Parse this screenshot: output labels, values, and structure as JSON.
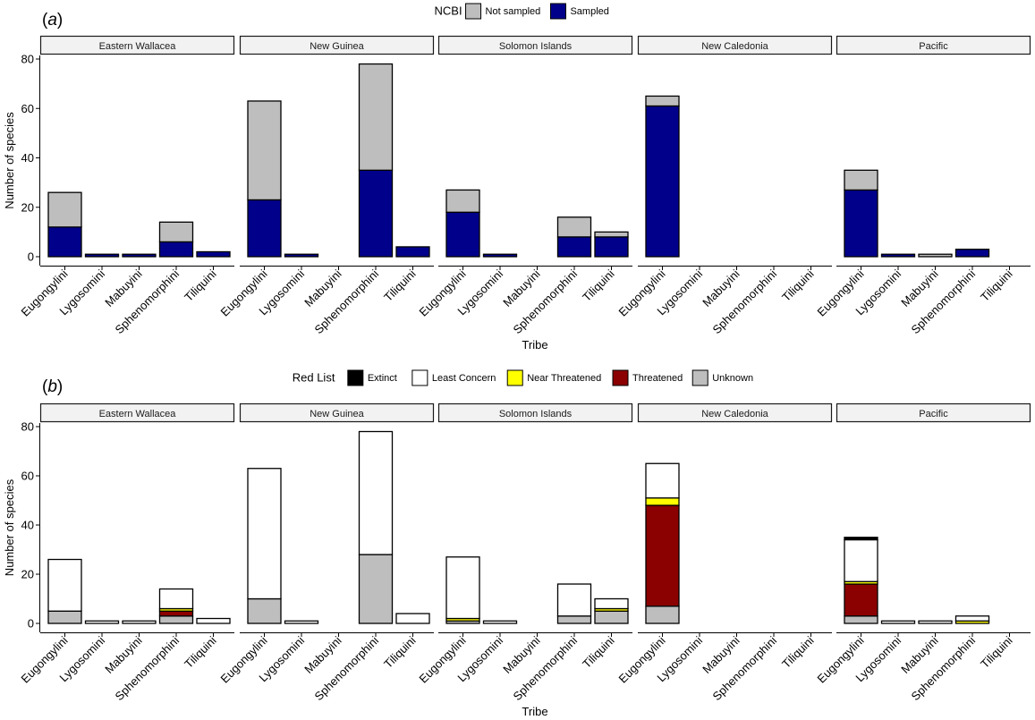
{
  "chart_data": [
    {
      "type": "bar",
      "panel_label": "a",
      "legend": {
        "title": "NCBI",
        "position": "top",
        "entries": [
          {
            "name": "Not sampled",
            "color": "#bebebe"
          },
          {
            "name": "Sampled",
            "color": "#00008b"
          }
        ]
      },
      "facets": [
        "Eastern Wallacea",
        "New Guinea",
        "Solomon Islands",
        "New Caledonia",
        "Pacific"
      ],
      "categories": [
        "Eugongylini",
        "Lygosomini",
        "Mabuyini",
        "Sphenomorphini",
        "Tiliquini"
      ],
      "xlabel": "Tribe",
      "ylabel": "Number of species",
      "ylim": [
        0,
        82
      ],
      "yticks": [
        "0",
        "20",
        "40",
        "60",
        "80"
      ],
      "stacked": true,
      "series": [
        {
          "name": "Sampled",
          "color": "#00008b",
          "values": [
            [
              12,
              1,
              1,
              6,
              2
            ],
            [
              23,
              1,
              0,
              35,
              4
            ],
            [
              18,
              1,
              0,
              8,
              8
            ],
            [
              61,
              0,
              0,
              0,
              0
            ],
            [
              27,
              1,
              0,
              3,
              0
            ]
          ]
        },
        {
          "name": "Not sampled",
          "color": "#bebebe",
          "values": [
            [
              14,
              0,
              0,
              8,
              0
            ],
            [
              40,
              0,
              0,
              43,
              0
            ],
            [
              9,
              0,
              0,
              8,
              2
            ],
            [
              4,
              0,
              0,
              0,
              0
            ],
            [
              8,
              0,
              1,
              0,
              0
            ]
          ]
        }
      ]
    },
    {
      "type": "bar",
      "panel_label": "b",
      "legend": {
        "title": "Red List",
        "position": "top",
        "entries": [
          {
            "name": "Extinct",
            "color": "#000000"
          },
          {
            "name": "Least Concern",
            "color": "#ffffff"
          },
          {
            "name": "Near Threatened",
            "color": "#ffff00"
          },
          {
            "name": "Threatened",
            "color": "#8b0000"
          },
          {
            "name": "Unknown",
            "color": "#bebebe"
          }
        ]
      },
      "facets": [
        "Eastern Wallacea",
        "New Guinea",
        "Solomon Islands",
        "New Caledonia",
        "Pacific"
      ],
      "categories": [
        "Eugongylini",
        "Lygosomini",
        "Mabuyini",
        "Sphenomorphini",
        "Tiliquini"
      ],
      "xlabel": "Tribe",
      "ylabel": "Number of species",
      "ylim": [
        0,
        82
      ],
      "yticks": [
        "0",
        "20",
        "40",
        "60",
        "80"
      ],
      "stacked": true,
      "series": [
        {
          "name": "Unknown",
          "color": "#bebebe",
          "values": [
            [
              5,
              0,
              0,
              3,
              0
            ],
            [
              10,
              0,
              0,
              28,
              0
            ],
            [
              1,
              0,
              0,
              3,
              5
            ],
            [
              7,
              0,
              0,
              0,
              0
            ],
            [
              3,
              0,
              0,
              0,
              0
            ]
          ]
        },
        {
          "name": "Threatened",
          "color": "#8b0000",
          "values": [
            [
              0,
              0,
              0,
              2,
              0
            ],
            [
              0,
              0,
              0,
              0,
              0
            ],
            [
              0,
              0,
              0,
              0,
              0
            ],
            [
              41,
              0,
              0,
              0,
              0
            ],
            [
              13,
              0,
              0,
              0,
              0
            ]
          ]
        },
        {
          "name": "Near Threatened",
          "color": "#ffff00",
          "values": [
            [
              0,
              0,
              0,
              1,
              0
            ],
            [
              0,
              0,
              0,
              0,
              0
            ],
            [
              1,
              0,
              0,
              0,
              1
            ],
            [
              3,
              0,
              0,
              0,
              0
            ],
            [
              1,
              0,
              0,
              1,
              0
            ]
          ]
        },
        {
          "name": "Least Concern",
          "color": "#ffffff",
          "values": [
            [
              21,
              1,
              1,
              8,
              2
            ],
            [
              53,
              1,
              0,
              50,
              4
            ],
            [
              25,
              1,
              0,
              13,
              4
            ],
            [
              14,
              0,
              0,
              0,
              0
            ],
            [
              17,
              1,
              1,
              2,
              0
            ]
          ]
        },
        {
          "name": "Extinct",
          "color": "#000000",
          "values": [
            [
              0,
              0,
              0,
              0,
              0
            ],
            [
              0,
              0,
              0,
              0,
              0
            ],
            [
              0,
              0,
              0,
              0,
              0
            ],
            [
              0,
              0,
              0,
              0,
              0
            ],
            [
              1,
              0,
              0,
              0,
              0
            ]
          ]
        }
      ]
    }
  ]
}
